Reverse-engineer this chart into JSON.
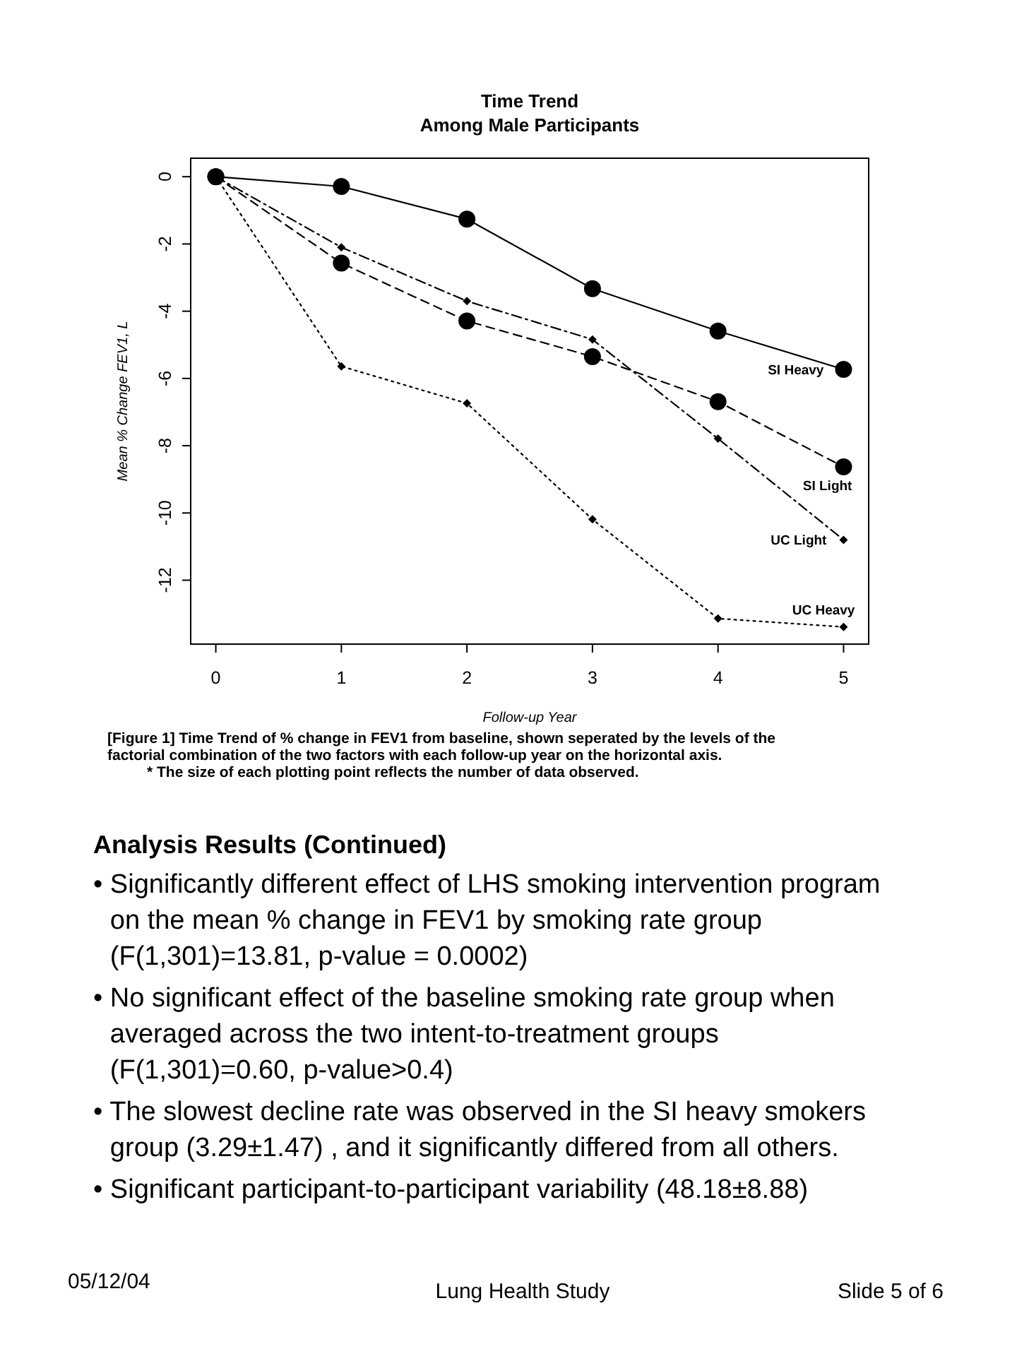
{
  "chart_data": {
    "type": "line",
    "title": "Time Trend",
    "subtitle": "Among Male Participants",
    "xlabel": "Follow-up Year",
    "ylabel": "Mean % Change FEV1, L",
    "x": [
      0,
      1,
      2,
      3,
      4,
      5
    ],
    "series": [
      {
        "name": "SI Heavy",
        "color": "#000000",
        "line_style": "solid",
        "marker": "circle",
        "values": [
          0,
          -0.29,
          -1.26,
          -3.33,
          -4.59,
          -5.73
        ]
      },
      {
        "name": "SI Light",
        "color": "#000000",
        "line_style": "dashed",
        "marker": "circle",
        "values": [
          0,
          -2.57,
          -4.29,
          -5.35,
          -6.69,
          -8.63
        ]
      },
      {
        "name": "UC Light",
        "color": "#000000",
        "line_style": "dashdot",
        "marker": "diamond",
        "values": [
          0,
          -2.1,
          -3.7,
          -4.84,
          -7.79,
          -10.8
        ]
      },
      {
        "name": "UC Heavy",
        "color": "#000000",
        "line_style": "dotted",
        "marker": "diamond",
        "values": [
          0,
          -5.64,
          -6.74,
          -10.19,
          -13.14,
          -13.39
        ]
      }
    ],
    "xlim": [
      -0.2,
      5.2
    ],
    "xticks": [
      0,
      1,
      2,
      3,
      4,
      5
    ],
    "ylim": [
      -13.9,
      0.55
    ],
    "yticks": [
      -12,
      -10,
      -8,
      -6,
      -4,
      -2,
      0
    ],
    "grid": false,
    "annotations": [
      "[Figure 1] Time Trend of % change in FEV1 from baseline, shown seperated by the levels of the factorial combination of the two factors with each follow-up year on the horizontal axis.",
      "* The size of each plotting point reflects the number of data observed.",
      "Analysis Results (Continued)",
      "• Significantly different effect of LHS smoking intervention program on the mean % change in FEV1 by smoking rate group (F(1,301)=13.81, p-value = 0.0002)",
      "• No significant effect of the baseline smoking rate group when averaged across the two intent-to-treatment groups (F(1,301)=0.60, p-value>0.4)",
      "• The slowest decline rate was observed in the SI heavy smokers group (3.29±1.47) , and it significantly differed from all others.",
      "• Significant participant-to-participant variability (48.18±8.88)",
      "05/12/04",
      "Lung Health Study",
      "Slide 5 of 6"
    ]
  }
}
